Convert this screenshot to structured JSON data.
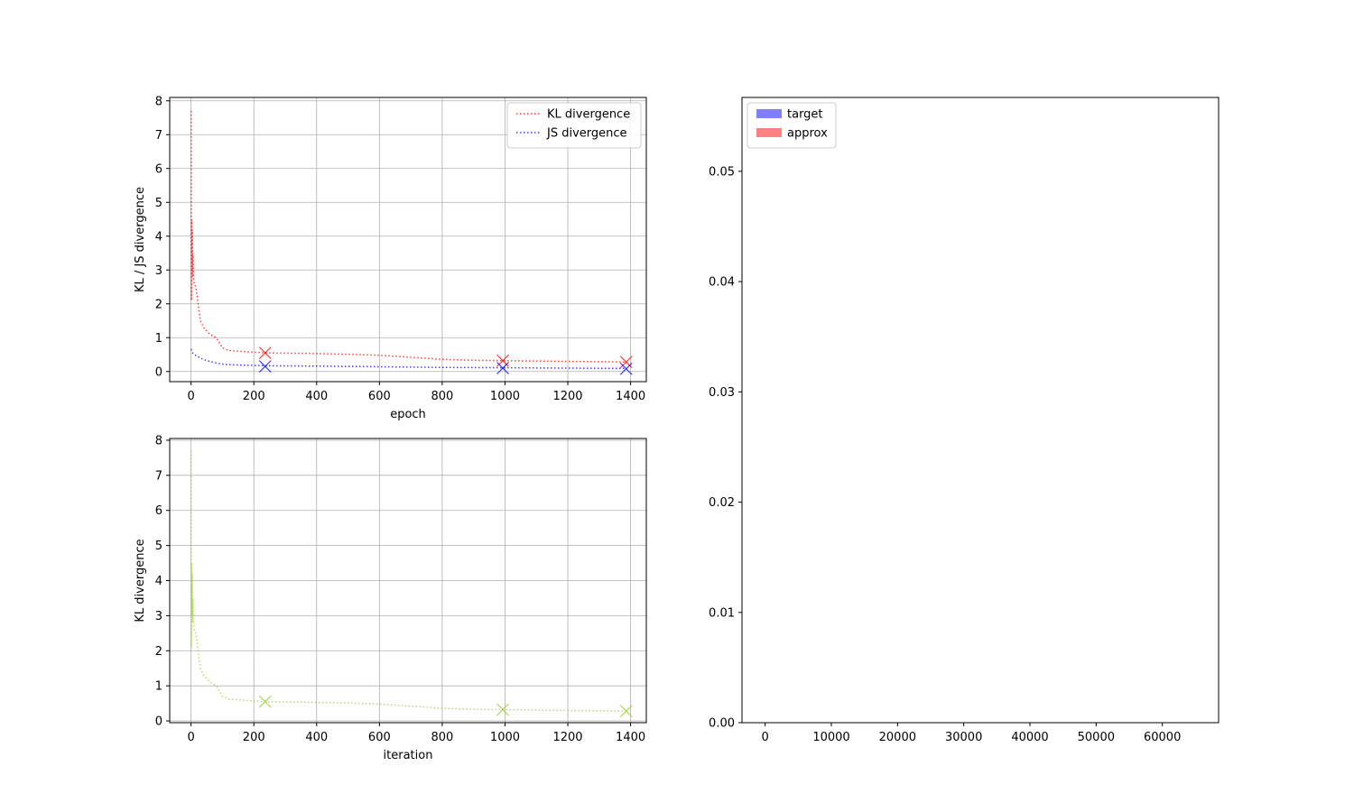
{
  "chart_data": [
    {
      "type": "line",
      "xlabel": "epoch",
      "ylabel": "KL / JS divergence",
      "xlim": [
        -68,
        1450
      ],
      "ylim": [
        -0.3,
        8.1
      ],
      "xticks": [
        0,
        200,
        400,
        600,
        800,
        1000,
        1200,
        1400
      ],
      "yticks": [
        0,
        1,
        2,
        3,
        4,
        5,
        6,
        7,
        8
      ],
      "grid": true,
      "legend": "top-right",
      "series": [
        {
          "name": "KL divergence",
          "color": "#ff0000",
          "linestyle": "dotted",
          "x": [
            0,
            1,
            2,
            3,
            4,
            5,
            6,
            8,
            10,
            15,
            20,
            25,
            30,
            40,
            50,
            60,
            80,
            90,
            100,
            120,
            150,
            200,
            240,
            300,
            400,
            500,
            600,
            700,
            800,
            900,
            1000,
            1100,
            1200,
            1300,
            1386
          ],
          "y": [
            7.7,
            2.1,
            4.5,
            3.0,
            4.2,
            2.8,
            3.5,
            2.7,
            2.6,
            2.5,
            2.2,
            1.8,
            1.5,
            1.3,
            1.2,
            1.1,
            1.0,
            0.85,
            0.7,
            0.62,
            0.6,
            0.57,
            0.55,
            0.54,
            0.53,
            0.51,
            0.48,
            0.42,
            0.36,
            0.33,
            0.32,
            0.31,
            0.3,
            0.29,
            0.28
          ]
        },
        {
          "name": "JS divergence",
          "color": "#0000ff",
          "linestyle": "dotted",
          "x": [
            0,
            5,
            10,
            20,
            40,
            60,
            80,
            100,
            120,
            200,
            240,
            400,
            600,
            800,
            1000,
            1200,
            1386
          ],
          "y": [
            0.66,
            0.55,
            0.5,
            0.45,
            0.35,
            0.3,
            0.25,
            0.22,
            0.2,
            0.18,
            0.17,
            0.16,
            0.14,
            0.12,
            0.11,
            0.1,
            0.09
          ]
        }
      ],
      "markers": [
        {
          "series": 0,
          "color": "#ff0000",
          "symbol": "x",
          "points": [
            [
              236,
              0.55
            ],
            [
              993,
              0.32
            ],
            [
              1386,
              0.28
            ]
          ]
        },
        {
          "series": 1,
          "color": "#0000ff",
          "symbol": "x",
          "points": [
            [
              236,
              0.15
            ],
            [
              993,
              0.1
            ],
            [
              1386,
              0.08
            ]
          ]
        }
      ]
    },
    {
      "type": "line",
      "xlabel": "iteration",
      "ylabel": "KL divergence",
      "xlim": [
        -68,
        1450
      ],
      "ylim": [
        -0.05,
        8.05
      ],
      "xticks": [
        0,
        200,
        400,
        600,
        800,
        1000,
        1200,
        1400
      ],
      "yticks": [
        0,
        1,
        2,
        3,
        4,
        5,
        6,
        7,
        8
      ],
      "grid": true,
      "series": [
        {
          "color": "#9acd32",
          "linestyle": "dotted",
          "x": [
            0,
            1,
            2,
            3,
            4,
            5,
            6,
            8,
            10,
            15,
            20,
            25,
            30,
            40,
            50,
            60,
            80,
            90,
            100,
            120,
            150,
            200,
            240,
            300,
            400,
            500,
            600,
            700,
            800,
            900,
            1000,
            1100,
            1200,
            1300,
            1386
          ],
          "y": [
            7.7,
            2.1,
            4.5,
            3.0,
            4.2,
            2.8,
            3.5,
            2.7,
            2.6,
            2.5,
            2.2,
            1.8,
            1.5,
            1.3,
            1.2,
            1.1,
            1.0,
            0.85,
            0.7,
            0.62,
            0.6,
            0.57,
            0.55,
            0.54,
            0.53,
            0.51,
            0.48,
            0.42,
            0.36,
            0.33,
            0.32,
            0.31,
            0.3,
            0.29,
            0.28
          ]
        }
      ],
      "markers": [
        {
          "series": 0,
          "color": "#9acd32",
          "symbol": "x",
          "points": [
            [
              236,
              0.55
            ],
            [
              993,
              0.32
            ],
            [
              1386,
              0.28
            ]
          ]
        }
      ]
    },
    {
      "type": "bar",
      "xlim": [
        -3500,
        68500
      ],
      "ylim": [
        0,
        0.0567
      ],
      "xticks": [
        0,
        10000,
        20000,
        30000,
        40000,
        50000,
        60000
      ],
      "yticks": [
        "0.00",
        "0.01",
        "0.02",
        "0.03",
        "0.04",
        "0.05"
      ],
      "grid": false,
      "legend": "top-left",
      "series": [
        {
          "name": "target",
          "color": "#8080ff",
          "values": []
        },
        {
          "name": "approx",
          "color": "#ff8080",
          "values": []
        }
      ]
    }
  ]
}
